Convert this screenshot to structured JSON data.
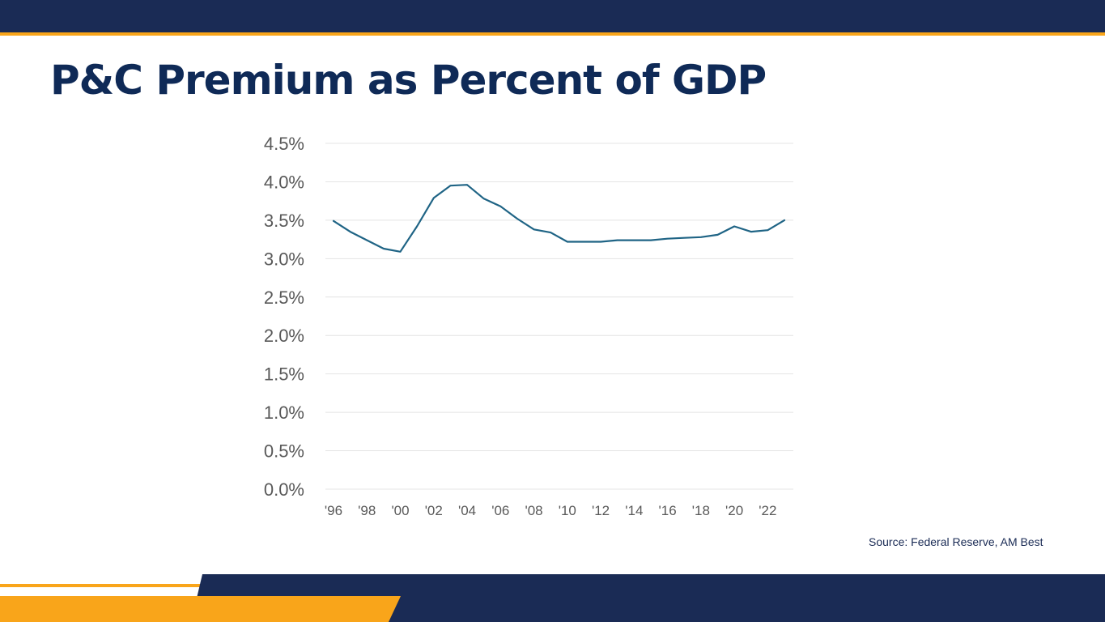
{
  "title": "P&C Premium as Percent of GDP",
  "source": "Source: Federal Reserve, AM Best",
  "colors": {
    "navy": "#1a2b55",
    "orange": "#f9a51a",
    "line": "#1f6485"
  },
  "chart_data": {
    "type": "line",
    "title": "P&C Premium as Percent of GDP",
    "xlabel": "",
    "ylabel": "",
    "ylim": [
      0,
      4.5
    ],
    "grid": true,
    "y_ticks": [
      {
        "value": 0.0,
        "label": "0.0%"
      },
      {
        "value": 0.5,
        "label": "0.5%"
      },
      {
        "value": 1.0,
        "label": "1.0%"
      },
      {
        "value": 1.5,
        "label": "1.5%"
      },
      {
        "value": 2.0,
        "label": "2.0%"
      },
      {
        "value": 2.5,
        "label": "2.5%"
      },
      {
        "value": 3.0,
        "label": "3.0%"
      },
      {
        "value": 3.5,
        "label": "3.5%"
      },
      {
        "value": 4.0,
        "label": "4.0%"
      },
      {
        "value": 4.5,
        "label": "4.5%"
      }
    ],
    "x_ticks": [
      {
        "year": 1996,
        "label": "'96"
      },
      {
        "year": 1998,
        "label": "'98"
      },
      {
        "year": 2000,
        "label": "'00"
      },
      {
        "year": 2002,
        "label": "'02"
      },
      {
        "year": 2004,
        "label": "'04"
      },
      {
        "year": 2006,
        "label": "'06"
      },
      {
        "year": 2008,
        "label": "'08"
      },
      {
        "year": 2010,
        "label": "'10"
      },
      {
        "year": 2012,
        "label": "'12"
      },
      {
        "year": 2014,
        "label": "'14"
      },
      {
        "year": 2016,
        "label": "'16"
      },
      {
        "year": 2018,
        "label": "'18"
      },
      {
        "year": 2020,
        "label": "'20"
      },
      {
        "year": 2022,
        "label": "'22"
      }
    ],
    "series": [
      {
        "name": "P&C Premium as Percent of GDP",
        "x": [
          1996,
          1997,
          1998,
          1999,
          2000,
          2001,
          2002,
          2003,
          2004,
          2005,
          2006,
          2007,
          2008,
          2009,
          2010,
          2011,
          2012,
          2013,
          2014,
          2015,
          2016,
          2017,
          2018,
          2019,
          2020,
          2021,
          2022,
          2023
        ],
        "values": [
          3.49,
          3.35,
          3.24,
          3.13,
          3.09,
          3.42,
          3.79,
          3.95,
          3.96,
          3.78,
          3.68,
          3.52,
          3.38,
          3.34,
          3.22,
          3.22,
          3.22,
          3.24,
          3.24,
          3.24,
          3.26,
          3.27,
          3.28,
          3.31,
          3.42,
          3.35,
          3.37,
          3.5
        ]
      }
    ]
  }
}
